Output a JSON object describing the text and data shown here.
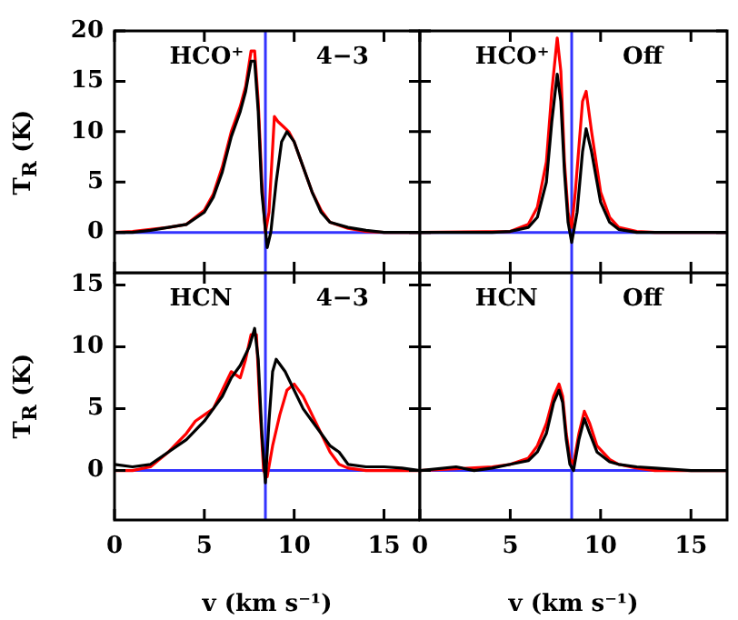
{
  "chart_data": [
    {
      "type": "line",
      "annotations": [
        "HCO⁺",
        "4−3"
      ],
      "ylabel": "T$_{R}$ (K)",
      "xlim": [
        0,
        17
      ],
      "xticks": [
        0,
        5,
        10,
        15
      ],
      "ylim": [
        -4,
        20
      ],
      "yticks": [
        0,
        5,
        10,
        15,
        20
      ],
      "tick_labels": "y",
      "marker": "none",
      "line_style": "solid",
      "ref_lines": [
        {
          "axis": "x",
          "value": 8.4,
          "color": "#3333ff"
        },
        {
          "axis": "y",
          "value": 0,
          "color": "#3333ff"
        }
      ],
      "series": [
        {
          "color": "#000000",
          "x": [
            0,
            1,
            2,
            3,
            4,
            5,
            5.5,
            6,
            6.5,
            7,
            7.3,
            7.6,
            7.8,
            8.0,
            8.2,
            8.5,
            8.7,
            9.0,
            9.3,
            9.6,
            10,
            10.5,
            11,
            11.5,
            12,
            13,
            14,
            15,
            16,
            17
          ],
          "values": [
            0,
            0,
            0.2,
            0.5,
            0.8,
            2,
            3.5,
            6,
            9.5,
            12,
            14,
            17,
            17,
            12,
            4,
            -1.5,
            0,
            5,
            9,
            10,
            9,
            6.5,
            4,
            2,
            1,
            0.5,
            0.2,
            0,
            0,
            0
          ]
        },
        {
          "color": "#ff0000",
          "x": [
            0,
            1,
            2,
            3,
            4,
            5,
            5.5,
            6,
            6.5,
            7,
            7.3,
            7.6,
            7.8,
            8.0,
            8.2,
            8.4,
            8.6,
            8.9,
            9.1,
            9.4,
            9.7,
            10,
            10.5,
            11,
            11.5,
            12,
            13,
            14,
            15,
            17
          ],
          "values": [
            0,
            0.1,
            0.3,
            0.5,
            0.8,
            2.2,
            3.8,
            6.5,
            10,
            12.5,
            14.5,
            18,
            18,
            13,
            5,
            0,
            2,
            11.5,
            11,
            10.5,
            10,
            9,
            6.5,
            4,
            2.2,
            1,
            0.4,
            0.1,
            0,
            0
          ]
        }
      ]
    },
    {
      "type": "line",
      "annotations": [
        "HCO⁺",
        "Off"
      ],
      "xlim": [
        0,
        17
      ],
      "xticks": [
        0,
        5,
        10,
        15
      ],
      "ylim": [
        -4,
        20
      ],
      "yticks": [
        0,
        5,
        10,
        15,
        20
      ],
      "tick_labels": false,
      "marker": "none",
      "line_style": "solid",
      "ref_lines": [
        {
          "axis": "x",
          "value": 8.4,
          "color": "#3333ff"
        },
        {
          "axis": "y",
          "value": 0,
          "color": "#3333ff"
        }
      ],
      "series": [
        {
          "color": "#000000",
          "x": [
            0,
            2,
            4,
            5,
            6,
            6.5,
            7,
            7.3,
            7.6,
            7.8,
            8.0,
            8.2,
            8.4,
            8.7,
            9.0,
            9.2,
            9.5,
            10,
            10.5,
            11,
            12,
            14,
            17
          ],
          "values": [
            0,
            0,
            0,
            0.1,
            0.5,
            1.5,
            5,
            11,
            15.7,
            13,
            6,
            1,
            -1,
            2,
            8,
            10.3,
            8,
            3,
            1,
            0.3,
            0,
            0,
            0
          ]
        },
        {
          "color": "#ff0000",
          "x": [
            0,
            5,
            6,
            6.5,
            7,
            7.3,
            7.6,
            7.8,
            8.0,
            8.2,
            8.4,
            8.6,
            9.0,
            9.2,
            9.5,
            10,
            10.5,
            11,
            12,
            13,
            17
          ],
          "values": [
            0,
            0.1,
            0.8,
            2.5,
            7,
            14,
            19.3,
            16,
            7,
            2,
            0.5,
            4,
            13,
            14,
            10,
            4,
            1.5,
            0.5,
            0.1,
            0,
            0
          ]
        }
      ]
    },
    {
      "type": "line",
      "annotations": [
        "HCN",
        "4−3"
      ],
      "xlabel": "v (km s⁻¹)",
      "ylabel": "T$_{R}$ (K)",
      "xlim": [
        0,
        17
      ],
      "xticks": [
        0,
        5,
        10,
        15
      ],
      "ylim": [
        -4,
        16
      ],
      "yticks": [
        0,
        5,
        10,
        15
      ],
      "marker": "none",
      "line_style": "solid",
      "ref_lines": [
        {
          "axis": "x",
          "value": 8.4,
          "color": "#3333ff"
        },
        {
          "axis": "y",
          "value": 0,
          "color": "#3333ff"
        }
      ],
      "series": [
        {
          "color": "#000000",
          "x": [
            0,
            1,
            2,
            3,
            4,
            5,
            5.5,
            6,
            6.5,
            7,
            7.5,
            7.8,
            8.0,
            8.2,
            8.4,
            8.6,
            8.8,
            9.0,
            9.5,
            10,
            10.5,
            11,
            11.5,
            12,
            12.5,
            13,
            14,
            15,
            16,
            17
          ],
          "values": [
            0.5,
            0.3,
            0.5,
            1.5,
            2.5,
            4,
            5,
            6,
            7.5,
            8.5,
            10,
            11.5,
            9,
            3,
            -1,
            4,
            8,
            9,
            8,
            6.5,
            5,
            4,
            3,
            2,
            1.5,
            0.5,
            0.3,
            0.3,
            0.2,
            0
          ]
        },
        {
          "color": "#ff0000",
          "x": [
            0,
            1,
            2,
            3,
            4,
            4.5,
            5,
            5.5,
            6,
            6.5,
            7,
            7.3,
            7.6,
            7.9,
            8.1,
            8.3,
            8.5,
            8.8,
            9.2,
            9.6,
            10,
            10.5,
            11,
            11.5,
            12,
            12.5,
            13,
            14,
            17
          ],
          "values": [
            0,
            0,
            0.3,
            1.5,
            3,
            4,
            4.5,
            5,
            6.5,
            8,
            7.5,
            9,
            11,
            11,
            5,
            0,
            -0.5,
            2,
            4.5,
            6.5,
            7,
            6,
            4.5,
            3,
            1.5,
            0.5,
            0.2,
            0,
            0
          ]
        }
      ]
    },
    {
      "type": "line",
      "annotations": [
        "HCN",
        "Off"
      ],
      "xlabel": "v (km s⁻¹)",
      "xlim": [
        0,
        17
      ],
      "xticks": [
        0,
        5,
        10,
        15
      ],
      "ylim": [
        -4,
        16
      ],
      "yticks": [
        0,
        5,
        10,
        15
      ],
      "tick_labels": "x",
      "marker": "none",
      "line_style": "solid",
      "ref_lines": [
        {
          "axis": "x",
          "value": 8.4,
          "color": "#3333ff"
        },
        {
          "axis": "y",
          "value": 0,
          "color": "#3333ff"
        }
      ],
      "series": [
        {
          "color": "#000000",
          "x": [
            0,
            2,
            3,
            4,
            5,
            6,
            6.5,
            7,
            7.4,
            7.7,
            7.9,
            8.1,
            8.3,
            8.5,
            8.8,
            9.1,
            9.4,
            9.8,
            10.5,
            11,
            12,
            13,
            15,
            17
          ],
          "values": [
            0,
            0.3,
            0,
            0.2,
            0.5,
            0.8,
            1.5,
            3,
            5.5,
            6.5,
            5.5,
            2.5,
            0.5,
            0,
            2.5,
            4.2,
            3,
            1.5,
            0.7,
            0.5,
            0.3,
            0.2,
            0,
            0
          ]
        },
        {
          "color": "#ff0000",
          "x": [
            0,
            4,
            5,
            6,
            6.5,
            7,
            7.4,
            7.7,
            7.9,
            8.1,
            8.3,
            8.5,
            8.8,
            9.1,
            9.4,
            9.8,
            10.5,
            11,
            12,
            13,
            17
          ],
          "values": [
            0,
            0.3,
            0.5,
            1,
            2,
            3.8,
            6,
            7,
            6,
            3,
            1,
            0.5,
            3,
            4.8,
            3.8,
            2,
            0.9,
            0.5,
            0.2,
            0,
            0
          ]
        }
      ]
    }
  ]
}
